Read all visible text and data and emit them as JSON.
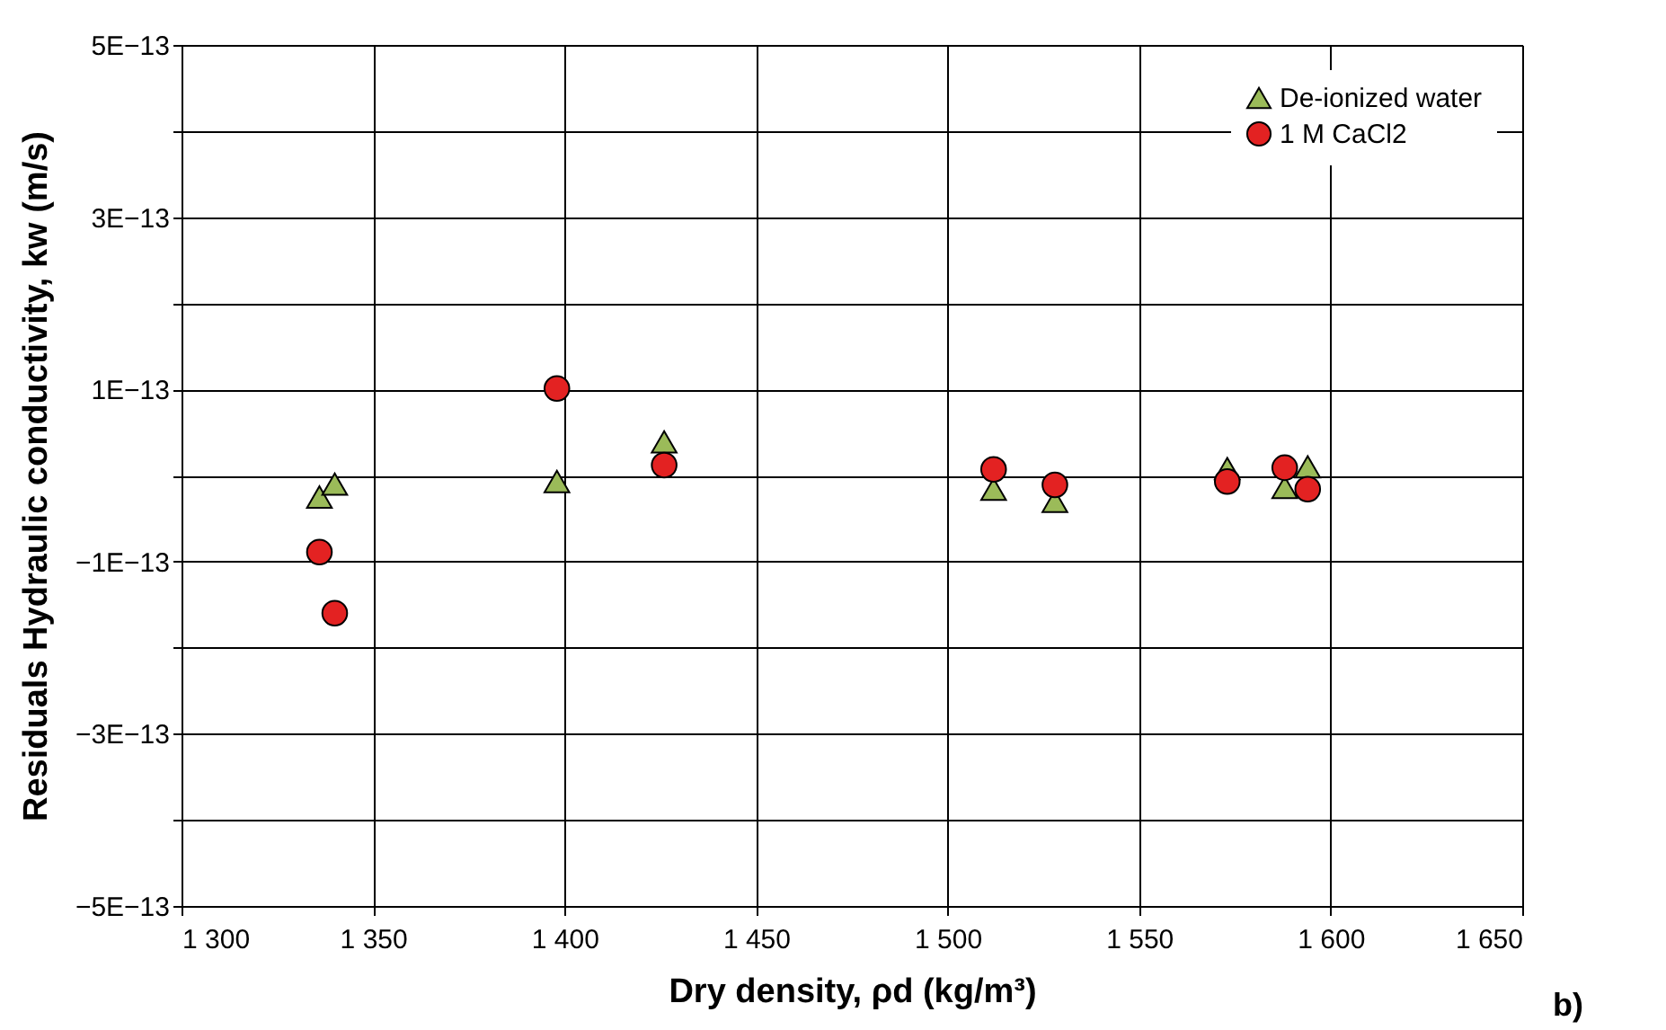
{
  "chart_data": {
    "type": "scatter",
    "xlabel": "Dry density, ρd (kg/m³)",
    "ylabel": "Residuals Hydraulic conductivity, kw (m/s)",
    "annotations": [
      "b)"
    ],
    "xlim": [
      1300,
      1650
    ],
    "xticks": [
      {
        "value": 1300,
        "label": "1 300"
      },
      {
        "value": 1350,
        "label": "1 350"
      },
      {
        "value": 1400,
        "label": "1 400"
      },
      {
        "value": 1450,
        "label": "1 450"
      },
      {
        "value": 1500,
        "label": "1 500"
      },
      {
        "value": 1550,
        "label": "1 550"
      },
      {
        "value": 1600,
        "label": "1 600"
      },
      {
        "value": 1650,
        "label": "1 650"
      }
    ],
    "ylim": [
      -5e-13,
      5e-13
    ],
    "yticks": [
      {
        "value": -5e-13,
        "label": "−5E−13"
      },
      {
        "value": -4e-13,
        "label": null
      },
      {
        "value": -3e-13,
        "label": "−3E−13"
      },
      {
        "value": -2e-13,
        "label": null
      },
      {
        "value": -1e-13,
        "label": "−1E−13"
      },
      {
        "value": 0,
        "label": null
      },
      {
        "value": 1e-13,
        "label": "1E−13"
      },
      {
        "value": 2e-13,
        "label": null
      },
      {
        "value": 3e-13,
        "label": "3E−13"
      },
      {
        "value": 4e-13,
        "label": null
      },
      {
        "value": 5e-13,
        "label": "5E−13"
      }
    ],
    "grid": true,
    "legend": "top right",
    "series": [
      {
        "name": "De-ionized water",
        "color": "#9bbb59",
        "marker": "triangle",
        "x": [
          1336,
          1340,
          1398,
          1426,
          1512,
          1528,
          1573,
          1588,
          1594
        ],
        "values": [
          -2.5e-14,
          -1e-14,
          -7e-15,
          3.9e-14,
          -1.6e-14,
          -3e-14,
          8e-15,
          -1.4e-14,
          1e-14
        ]
      },
      {
        "name": "1 M CaCl2",
        "color": "#e32222",
        "marker": "circle",
        "x": [
          1336,
          1340,
          1398,
          1426,
          1512,
          1528,
          1573,
          1588,
          1594
        ],
        "values": [
          -8.9e-14,
          -1.6e-13,
          1.01e-13,
          1.2e-14,
          7e-15,
          -1.1e-14,
          -7e-15,
          9e-15,
          -1.6e-14
        ]
      }
    ]
  }
}
